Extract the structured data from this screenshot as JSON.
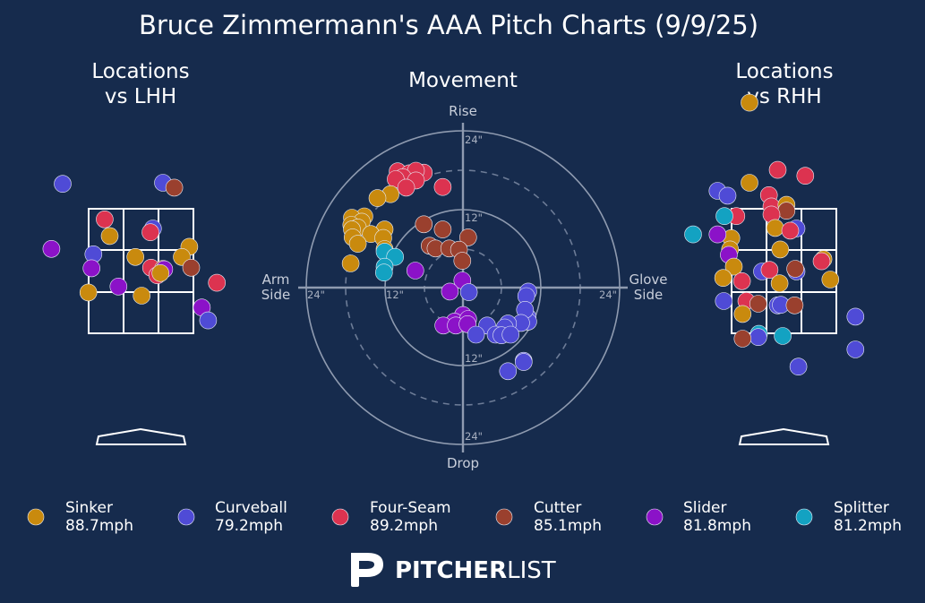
{
  "colors": {
    "background": "#162b4d",
    "Sinker": "#c98a0e",
    "Curveball": "#4f4bd6",
    "Four-Seam": "#dc3350",
    "Cutter": "#9a402e",
    "Slider": "#8b12c8",
    "Splitter": "#13a2c2"
  },
  "branding": {
    "logo_bold": "PITCHER",
    "logo_light": "LIST"
  },
  "chart_data": {
    "type": "scatter",
    "title": "Bruce Zimmermann's AAA Pitch Charts (9/9/25)",
    "legend": [
      {
        "name": "Sinker",
        "speed": "88.7mph"
      },
      {
        "name": "Curveball",
        "speed": "79.2mph"
      },
      {
        "name": "Four-Seam",
        "speed": "89.2mph"
      },
      {
        "name": "Cutter",
        "speed": "85.1mph"
      },
      {
        "name": "Slider",
        "speed": "81.8mph"
      },
      {
        "name": "Splitter",
        "speed": "81.2mph"
      }
    ],
    "panels": {
      "lhh": {
        "title_line1": "Locations",
        "title_line2": "vs LHH",
        "points": [
          {
            "pitch": "Curveball",
            "x": -1.25,
            "y": 4.28
          },
          {
            "pitch": "Curveball",
            "x": 0.35,
            "y": 4.3
          },
          {
            "pitch": "Cutter",
            "x": 0.53,
            "y": 4.21
          },
          {
            "pitch": "Four-Seam",
            "x": -0.58,
            "y": 3.62
          },
          {
            "pitch": "Curveball",
            "x": 0.19,
            "y": 3.45
          },
          {
            "pitch": "Four-Seam",
            "x": 0.15,
            "y": 3.38
          },
          {
            "pitch": "Sinker",
            "x": -0.5,
            "y": 3.31
          },
          {
            "pitch": "Slider",
            "x": -1.43,
            "y": 3.07
          },
          {
            "pitch": "Curveball",
            "x": -0.76,
            "y": 2.97
          },
          {
            "pitch": "Sinker",
            "x": -0.09,
            "y": 2.92
          },
          {
            "pitch": "Sinker",
            "x": 0.77,
            "y": 3.11
          },
          {
            "pitch": "Sinker",
            "x": 0.65,
            "y": 2.92
          },
          {
            "pitch": "Slider",
            "x": -0.79,
            "y": 2.71
          },
          {
            "pitch": "Four-Seam",
            "x": 0.16,
            "y": 2.72
          },
          {
            "pitch": "Cutter",
            "x": 0.35,
            "y": 2.7
          },
          {
            "pitch": "Slider",
            "x": 0.37,
            "y": 2.69
          },
          {
            "pitch": "Cutter",
            "x": 0.8,
            "y": 2.72
          },
          {
            "pitch": "Four-Seam",
            "x": 0.26,
            "y": 2.58
          },
          {
            "pitch": "Sinker",
            "x": 0.31,
            "y": 2.62
          },
          {
            "pitch": "Four-Seam",
            "x": 1.21,
            "y": 2.44
          },
          {
            "pitch": "Slider",
            "x": -0.36,
            "y": 2.37
          },
          {
            "pitch": "Sinker",
            "x": -0.84,
            "y": 2.26
          },
          {
            "pitch": "Sinker",
            "x": 0.01,
            "y": 2.2
          },
          {
            "pitch": "Slider",
            "x": 0.97,
            "y": 1.98
          },
          {
            "pitch": "Curveball",
            "x": 1.07,
            "y": 1.74
          }
        ]
      },
      "rhh": {
        "title_line1": "Locations",
        "title_line2": "vs RHH",
        "points": [
          {
            "pitch": "Sinker",
            "x": -0.55,
            "y": 5.79
          },
          {
            "pitch": "Four-Seam",
            "x": -0.1,
            "y": 4.54
          },
          {
            "pitch": "Four-Seam",
            "x": 0.34,
            "y": 4.43
          },
          {
            "pitch": "Sinker",
            "x": -0.55,
            "y": 4.3
          },
          {
            "pitch": "Curveball",
            "x": -1.06,
            "y": 4.15
          },
          {
            "pitch": "Curveball",
            "x": -0.9,
            "y": 4.06
          },
          {
            "pitch": "Four-Seam",
            "x": -0.24,
            "y": 4.07
          },
          {
            "pitch": "Four-Seam",
            "x": -0.2,
            "y": 3.86
          },
          {
            "pitch": "Sinker",
            "x": 0.04,
            "y": 3.89
          },
          {
            "pitch": "Cutter",
            "x": 0.04,
            "y": 3.78
          },
          {
            "pitch": "Four-Seam",
            "x": -0.2,
            "y": 3.71
          },
          {
            "pitch": "Four-Seam",
            "x": -0.76,
            "y": 3.68
          },
          {
            "pitch": "Splitter",
            "x": -0.95,
            "y": 3.68
          },
          {
            "pitch": "Sinker",
            "x": -0.14,
            "y": 3.46
          },
          {
            "pitch": "Curveball",
            "x": 0.2,
            "y": 3.45
          },
          {
            "pitch": "Four-Seam",
            "x": 0.1,
            "y": 3.41
          },
          {
            "pitch": "Sinker",
            "x": -0.84,
            "y": 3.27
          },
          {
            "pitch": "Slider",
            "x": -1.06,
            "y": 3.34
          },
          {
            "pitch": "Splitter",
            "x": -1.45,
            "y": 3.34
          },
          {
            "pitch": "Sinker",
            "x": -0.86,
            "y": 3.06
          },
          {
            "pitch": "Sinker",
            "x": -0.06,
            "y": 3.06
          },
          {
            "pitch": "Slider",
            "x": -0.88,
            "y": 2.96
          },
          {
            "pitch": "Sinker",
            "x": 0.63,
            "y": 2.88
          },
          {
            "pitch": "Four-Seam",
            "x": 0.6,
            "y": 2.84
          },
          {
            "pitch": "Sinker",
            "x": -0.8,
            "y": 2.74
          },
          {
            "pitch": "Curveball",
            "x": -0.35,
            "y": 2.65
          },
          {
            "pitch": "Four-Seam",
            "x": -0.23,
            "y": 2.68
          },
          {
            "pitch": "Curveball",
            "x": 0.2,
            "y": 2.65
          },
          {
            "pitch": "Cutter",
            "x": 0.18,
            "y": 2.7
          },
          {
            "pitch": "Sinker",
            "x": -0.97,
            "y": 2.53
          },
          {
            "pitch": "Sinker",
            "x": 0.74,
            "y": 2.5
          },
          {
            "pitch": "Four-Seam",
            "x": -0.67,
            "y": 2.47
          },
          {
            "pitch": "Sinker",
            "x": -0.07,
            "y": 2.43
          },
          {
            "pitch": "Curveball",
            "x": -0.96,
            "y": 2.1
          },
          {
            "pitch": "Four-Seam",
            "x": -0.6,
            "y": 2.1
          },
          {
            "pitch": "Cutter",
            "x": -0.41,
            "y": 2.05
          },
          {
            "pitch": "Curveball",
            "x": -0.1,
            "y": 2.02
          },
          {
            "pitch": "Curveball",
            "x": -0.05,
            "y": 2.03
          },
          {
            "pitch": "Cutter",
            "x": 0.17,
            "y": 2.02
          },
          {
            "pitch": "Sinker",
            "x": -0.66,
            "y": 1.86
          },
          {
            "pitch": "Curveball",
            "x": 1.14,
            "y": 1.81
          },
          {
            "pitch": "Splitter",
            "x": -0.4,
            "y": 1.49
          },
          {
            "pitch": "Curveball",
            "x": -0.41,
            "y": 1.43
          },
          {
            "pitch": "Splitter",
            "x": -0.02,
            "y": 1.45
          },
          {
            "pitch": "Cutter",
            "x": -0.66,
            "y": 1.4
          },
          {
            "pitch": "Curveball",
            "x": 1.14,
            "y": 1.2
          },
          {
            "pitch": "Curveball",
            "x": 0.23,
            "y": 0.88
          }
        ]
      },
      "movement": {
        "title": "Movement",
        "labels": {
          "rise": "Rise",
          "drop": "Drop",
          "arm1": "Arm",
          "arm2": "Side",
          "glove1": "Glove",
          "glove2": "Side"
        },
        "ring_labels": [
          "24\"",
          "12\""
        ],
        "points": [
          {
            "pitch": "Four-Seam",
            "h": -10.0,
            "v": 17.8
          },
          {
            "pitch": "Four-Seam",
            "h": -8.2,
            "v": 17.5
          },
          {
            "pitch": "Four-Seam",
            "h": -6.0,
            "v": 17.6
          },
          {
            "pitch": "Four-Seam",
            "h": -7.2,
            "v": 17.9
          },
          {
            "pitch": "Four-Seam",
            "h": -9.2,
            "v": 16.9
          },
          {
            "pitch": "Four-Seam",
            "h": -10.3,
            "v": 16.6
          },
          {
            "pitch": "Four-Seam",
            "h": -7.2,
            "v": 16.4
          },
          {
            "pitch": "Four-Seam",
            "h": -8.7,
            "v": 15.3
          },
          {
            "pitch": "Four-Seam",
            "h": -3.1,
            "v": 15.4
          },
          {
            "pitch": "Sinker",
            "h": -11.1,
            "v": 14.3
          },
          {
            "pitch": "Sinker",
            "h": -13.1,
            "v": 13.7
          },
          {
            "pitch": "Sinker",
            "h": -15.1,
            "v": 10.9
          },
          {
            "pitch": "Sinker",
            "h": -17.0,
            "v": 10.7
          },
          {
            "pitch": "Sinker",
            "h": -15.5,
            "v": 10.1
          },
          {
            "pitch": "Sinker",
            "h": -17.1,
            "v": 9.6
          },
          {
            "pitch": "Sinker",
            "h": -16.1,
            "v": 9.2
          },
          {
            "pitch": "Sinker",
            "h": -17.0,
            "v": 8.9
          },
          {
            "pitch": "Sinker",
            "h": -12.0,
            "v": 8.9
          },
          {
            "pitch": "Sinker",
            "h": -14.1,
            "v": 8.2
          },
          {
            "pitch": "Sinker",
            "h": -16.9,
            "v": 7.7
          },
          {
            "pitch": "Sinker",
            "h": -12.2,
            "v": 7.6
          },
          {
            "pitch": "Sinker",
            "h": -16.1,
            "v": 6.7
          },
          {
            "pitch": "Sinker",
            "h": -12.0,
            "v": 5.9
          },
          {
            "pitch": "Sinker",
            "h": -17.2,
            "v": 3.7
          },
          {
            "pitch": "Cutter",
            "h": -6.0,
            "v": 9.7
          },
          {
            "pitch": "Cutter",
            "h": -3.1,
            "v": 8.9
          },
          {
            "pitch": "Cutter",
            "h": 0.8,
            "v": 7.7
          },
          {
            "pitch": "Cutter",
            "h": -5.1,
            "v": 6.4
          },
          {
            "pitch": "Cutter",
            "h": -4.2,
            "v": 6.0
          },
          {
            "pitch": "Cutter",
            "h": -2.1,
            "v": 6.0
          },
          {
            "pitch": "Cutter",
            "h": -0.6,
            "v": 5.8
          },
          {
            "pitch": "Cutter",
            "h": -0.1,
            "v": 4.1
          },
          {
            "pitch": "Splitter",
            "h": -12.0,
            "v": 5.5
          },
          {
            "pitch": "Splitter",
            "h": -10.4,
            "v": 4.7
          },
          {
            "pitch": "Splitter",
            "h": -12.0,
            "v": 3.2
          },
          {
            "pitch": "Splitter",
            "h": -12.1,
            "v": 2.3
          },
          {
            "pitch": "Slider",
            "h": -7.3,
            "v": 2.6
          },
          {
            "pitch": "Slider",
            "h": -0.1,
            "v": 1.1
          },
          {
            "pitch": "Slider",
            "h": -2.0,
            "v": -0.6
          },
          {
            "pitch": "Slider",
            "h": 0.0,
            "v": -4.2
          },
          {
            "pitch": "Slider",
            "h": -1.3,
            "v": -5.2
          },
          {
            "pitch": "Slider",
            "h": 0.8,
            "v": -4.8
          },
          {
            "pitch": "Slider",
            "h": -3.0,
            "v": -5.8
          },
          {
            "pitch": "Slider",
            "h": -1.1,
            "v": -5.8
          },
          {
            "pitch": "Slider",
            "h": 0.7,
            "v": -5.6
          },
          {
            "pitch": "Curveball",
            "h": 0.9,
            "v": -0.7
          },
          {
            "pitch": "Curveball",
            "h": 10.0,
            "v": -0.6
          },
          {
            "pitch": "Curveball",
            "h": 9.7,
            "v": -1.3
          },
          {
            "pitch": "Curveball",
            "h": 9.9,
            "v": -4.5
          },
          {
            "pitch": "Curveball",
            "h": 10.0,
            "v": -5.2
          },
          {
            "pitch": "Curveball",
            "h": 9.5,
            "v": -3.4
          },
          {
            "pitch": "Curveball",
            "h": 8.9,
            "v": -5.4
          },
          {
            "pitch": "Curveball",
            "h": 6.9,
            "v": -5.5
          },
          {
            "pitch": "Curveball",
            "h": 6.4,
            "v": -6.1
          },
          {
            "pitch": "Curveball",
            "h": 3.7,
            "v": -5.8
          },
          {
            "pitch": "Curveball",
            "h": 2.0,
            "v": -7.2
          },
          {
            "pitch": "Curveball",
            "h": 5.0,
            "v": -7.2
          },
          {
            "pitch": "Curveball",
            "h": 5.9,
            "v": -7.3
          },
          {
            "pitch": "Curveball",
            "h": 7.3,
            "v": -7.2
          },
          {
            "pitch": "Curveball",
            "h": 9.3,
            "v": -11.2
          },
          {
            "pitch": "Curveball",
            "h": 9.3,
            "v": -11.4
          },
          {
            "pitch": "Curveball",
            "h": 6.9,
            "v": -12.8
          }
        ]
      }
    }
  }
}
